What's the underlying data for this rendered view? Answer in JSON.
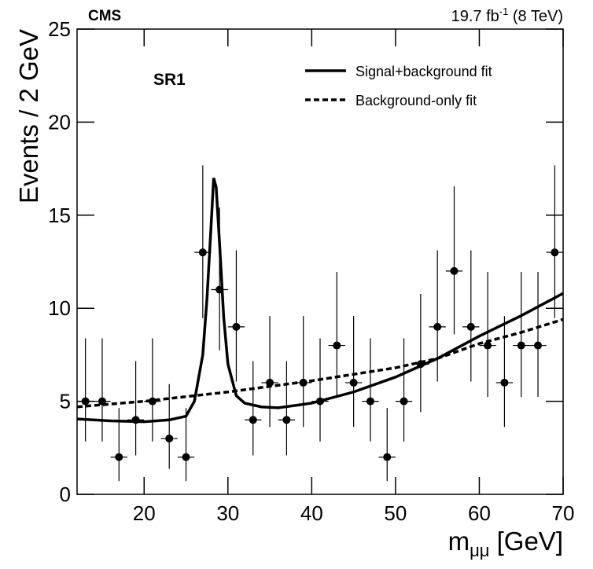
{
  "chart_data": {
    "type": "scatter",
    "experiment": "CMS",
    "luminosity": [
      "19.7 fb",
      "-1",
      " (8 TeV)"
    ],
    "region": "SR1",
    "y_label": "Events / 2 GeV",
    "x_label": [
      "m",
      "μμ",
      " [GeV]"
    ],
    "xlim": [
      12,
      70
    ],
    "ylim": [
      0,
      25
    ],
    "xticks": [
      20,
      30,
      40,
      50,
      60,
      70
    ],
    "yticks": [
      0,
      5,
      10,
      15,
      20,
      25
    ],
    "legend": "top-right",
    "series": [
      {
        "style": "points",
        "color": "#000000",
        "x": [
          13,
          15,
          17,
          19,
          21,
          23,
          25,
          27,
          29,
          31,
          33,
          35,
          37,
          39,
          41,
          43,
          45,
          47,
          49,
          51,
          53,
          55,
          57,
          59,
          61,
          63,
          65,
          67,
          69
        ],
        "values": [
          5,
          5,
          2,
          4,
          5,
          3,
          2,
          13,
          11,
          9,
          4,
          6,
          4,
          6,
          5,
          8,
          6,
          5,
          2,
          5,
          7,
          9,
          12,
          9,
          8,
          6,
          8,
          8,
          13
        ],
        "yerr_low": [
          2.16,
          2.16,
          1.29,
          1.91,
          2.16,
          1.63,
          1.29,
          3.53,
          3.26,
          2.94,
          1.91,
          2.38,
          1.91,
          2.38,
          2.16,
          2.77,
          2.38,
          2.16,
          1.29,
          2.16,
          2.58,
          2.94,
          3.4,
          2.94,
          2.77,
          2.38,
          2.77,
          2.77,
          3.53
        ],
        "yerr_high": [
          3.38,
          3.38,
          2.64,
          3.16,
          3.38,
          2.92,
          2.64,
          4.68,
          4.41,
          4.11,
          3.16,
          3.58,
          3.16,
          3.58,
          3.38,
          3.95,
          3.58,
          3.38,
          2.64,
          3.38,
          3.77,
          4.11,
          4.55,
          4.11,
          3.95,
          3.58,
          3.95,
          3.95,
          4.68
        ],
        "xerr": 1
      },
      {
        "name": "Signal+background fit",
        "style": "solid",
        "color": "#000000",
        "x": [
          12,
          16,
          20,
          23,
          25,
          26,
          27,
          27.5,
          28,
          28.3,
          28.6,
          29,
          29.5,
          30,
          31,
          32,
          34,
          36,
          40,
          45,
          50,
          55,
          60,
          65,
          70
        ],
        "values": [
          4.05,
          3.95,
          3.9,
          4.0,
          4.2,
          5.0,
          7.5,
          10.5,
          14.5,
          17.0,
          16.5,
          13.5,
          9.5,
          7.0,
          5.3,
          4.9,
          4.7,
          4.65,
          4.9,
          5.5,
          6.3,
          7.3,
          8.5,
          9.6,
          10.8
        ]
      },
      {
        "name": "Background-only fit",
        "style": "dashed",
        "color": "#000000",
        "x": [
          12,
          20,
          30,
          40,
          50,
          55,
          60,
          65,
          70
        ],
        "values": [
          4.7,
          5.0,
          5.5,
          6.1,
          6.8,
          7.3,
          8.1,
          8.7,
          9.4
        ]
      }
    ]
  }
}
